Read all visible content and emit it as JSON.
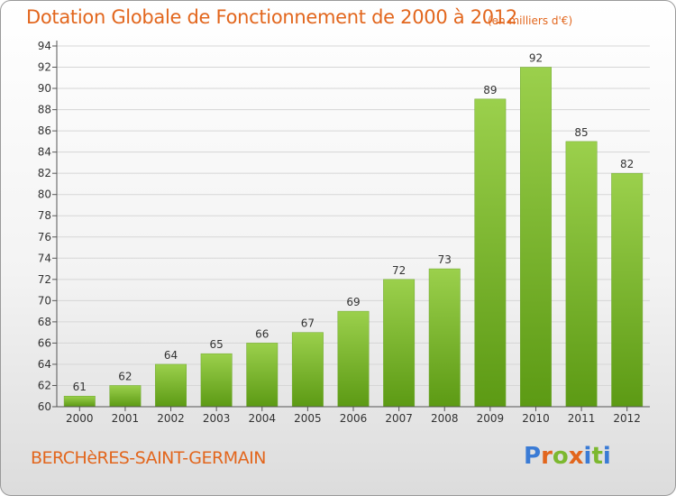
{
  "header": {
    "title": "Dotation Globale de Fonctionnement de 2000 à 2012",
    "subtitle": "(en milliers d'€)"
  },
  "footer": {
    "place": "BERCHèRES-SAINT-GERMAIN",
    "logo": "Proxiti"
  },
  "colors": {
    "accent": "#e2661d",
    "bar_top": "#9bd04c",
    "bar_bottom": "#5c9a14",
    "logo_letters": [
      "#3a7bd5",
      "#e2661d",
      "#7cb82f",
      "#e2661d",
      "#3a7bd5",
      "#7cb82f",
      "#3a7bd5"
    ]
  },
  "chart_data": {
    "type": "bar",
    "title": "Dotation Globale de Fonctionnement de 2000 à 2012",
    "subtitle": "(en milliers d'€)",
    "categories": [
      "2000",
      "2001",
      "2002",
      "2003",
      "2004",
      "2005",
      "2006",
      "2007",
      "2008",
      "2009",
      "2010",
      "2011",
      "2012"
    ],
    "values": [
      61,
      62,
      64,
      65,
      66,
      67,
      69,
      72,
      73,
      89,
      92,
      85,
      82
    ],
    "ylim": [
      60,
      94
    ],
    "yticks": [
      60,
      62,
      64,
      66,
      68,
      70,
      72,
      74,
      76,
      78,
      80,
      82,
      84,
      86,
      88,
      90,
      92,
      94
    ],
    "grid": true,
    "xlabel": "",
    "ylabel": ""
  }
}
